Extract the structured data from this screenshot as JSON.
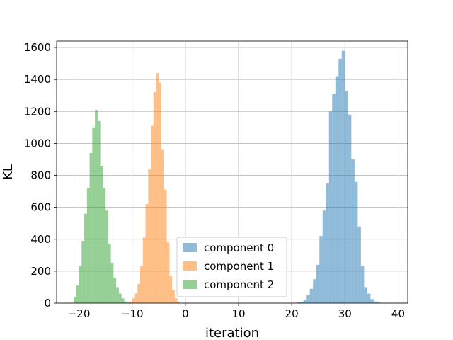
{
  "chart_data": {
    "type": "histogram",
    "title": "",
    "xlabel": "iteration",
    "ylabel": "KL",
    "xlim": [
      -24.2,
      41.8
    ],
    "ylim": [
      0,
      1640
    ],
    "xticks": [
      -20,
      -10,
      0,
      10,
      20,
      30,
      40
    ],
    "xtick_labels": [
      "−20",
      "−10",
      "0",
      "10",
      "20",
      "30",
      "40"
    ],
    "yticks": [
      0,
      200,
      400,
      600,
      800,
      1000,
      1200,
      1400,
      1600
    ],
    "ytick_labels": [
      "0",
      "200",
      "400",
      "600",
      "800",
      "1000",
      "1200",
      "1400",
      "1600"
    ],
    "grid": true,
    "legend_position": "lower-center",
    "series": [
      {
        "name": "component 0",
        "color": "#1f77b4",
        "alpha": 0.5,
        "bin_start": 21.0,
        "bin_width": 0.6,
        "counts": [
          5,
          8,
          20,
          50,
          90,
          150,
          240,
          420,
          580,
          750,
          1200,
          1310,
          1420,
          1530,
          1580,
          1330,
          1180,
          900,
          760,
          480,
          230,
          100,
          60,
          25,
          10,
          5
        ]
      },
      {
        "name": "component 1",
        "color": "#ff7f0e",
        "alpha": 0.5,
        "bin_start": -11.0,
        "bin_width": 0.5,
        "counts": [
          5,
          10,
          30,
          60,
          120,
          230,
          410,
          620,
          840,
          1110,
          1320,
          1440,
          1380,
          960,
          710,
          380,
          170,
          80,
          30,
          10
        ]
      },
      {
        "name": "component 2",
        "color": "#2ca02c",
        "alpha": 0.5,
        "bin_start": -21.0,
        "bin_width": 0.5,
        "counts": [
          40,
          110,
          230,
          390,
          560,
          720,
          940,
          1100,
          1210,
          1140,
          860,
          720,
          580,
          370,
          250,
          160,
          100,
          60,
          30,
          10
        ]
      }
    ]
  }
}
